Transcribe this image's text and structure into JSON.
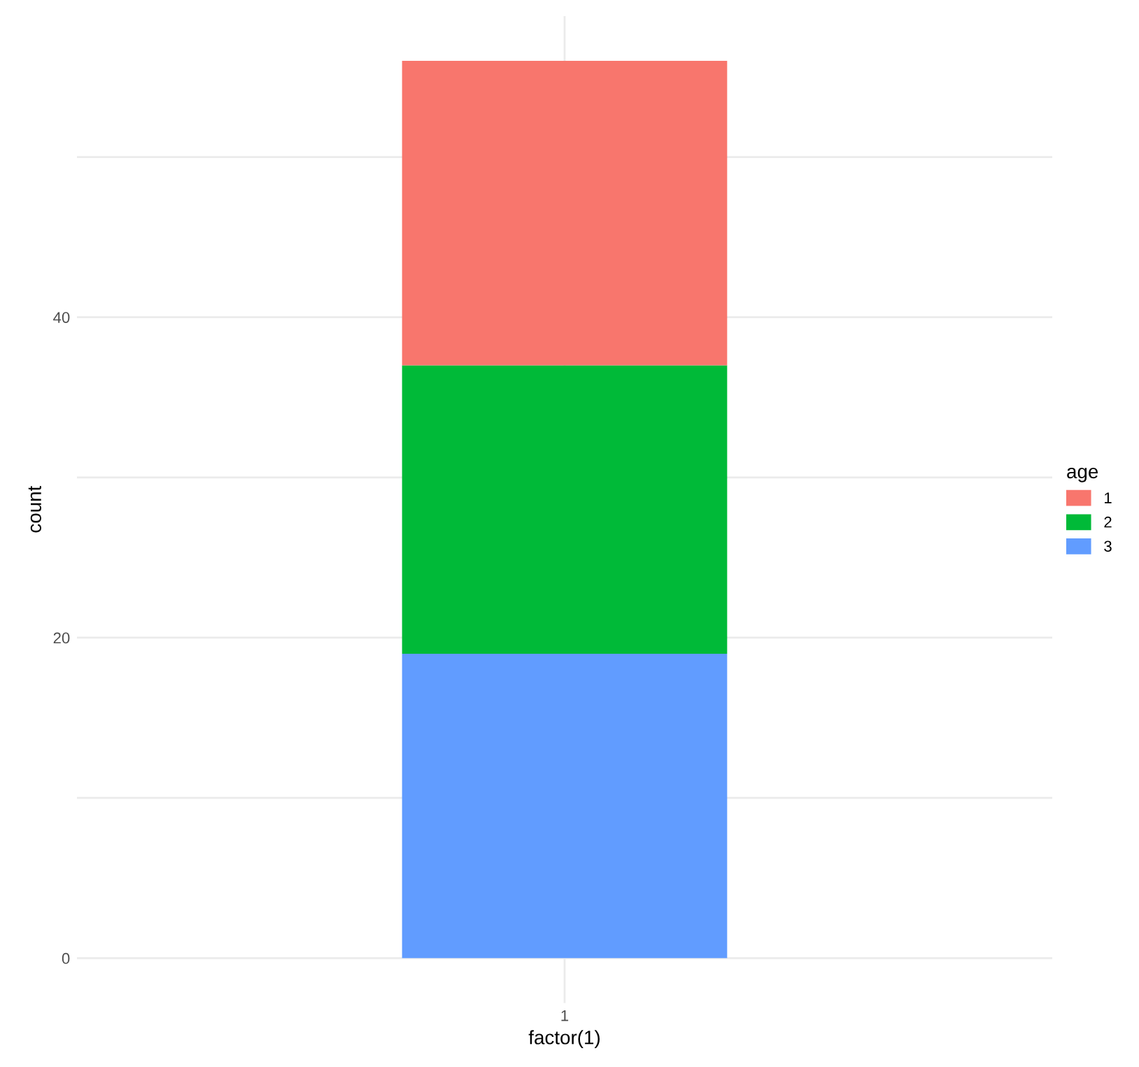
{
  "chart_data": {
    "type": "bar",
    "stacked": true,
    "xlabel": "factor(1)",
    "ylabel": "count",
    "legend_title": "age",
    "categories": [
      "1"
    ],
    "series": [
      {
        "name": "3",
        "color": "#619cff",
        "values": [
          19
        ]
      },
      {
        "name": "2",
        "color": "#00ba38",
        "values": [
          18
        ]
      },
      {
        "name": "1",
        "color": "#f8766d",
        "values": [
          19
        ]
      }
    ],
    "ylim": [
      -2.8,
      58.8
    ],
    "yticks": [
      0,
      {
        "value": 10,
        "label": null
      },
      20,
      {
        "value": 30,
        "label": null
      },
      40,
      {
        "value": 50,
        "label": null
      }
    ],
    "grid": true,
    "legend": "right"
  }
}
